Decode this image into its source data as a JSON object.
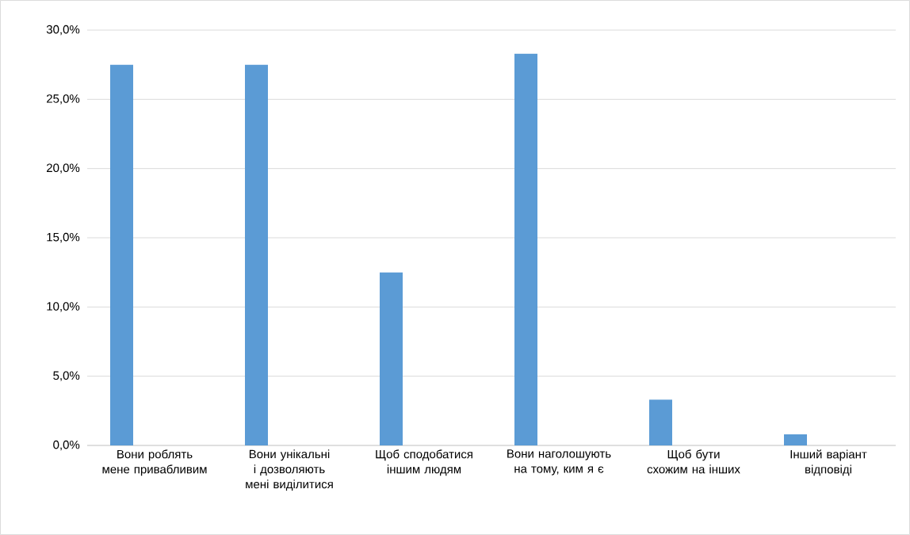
{
  "chart_data": {
    "type": "bar",
    "categories": [
      "Вони роблять мене привабливим",
      "Вони унікальні і дозволяють мені виділитися",
      "Щоб сподобатися іншим людям",
      "Вони наголошують на тому, ким я є",
      "Щоб бути схожим на інших",
      "Інший варіант відповіді"
    ],
    "values": [
      27.5,
      27.5,
      12.5,
      28.3,
      3.3,
      0.8
    ],
    "color": "#5b9bd5",
    "ylim": [
      0,
      30
    ],
    "yticks": [
      {
        "value": 0,
        "label": "0,0%"
      },
      {
        "value": 5,
        "label": "5,0%"
      },
      {
        "value": 10,
        "label": "10,0%"
      },
      {
        "value": 15,
        "label": "15,0%"
      },
      {
        "value": 20,
        "label": "20,0%"
      },
      {
        "value": 25,
        "label": "25,0%"
      },
      {
        "value": 30,
        "label": "30,0%"
      }
    ],
    "grid": "y"
  }
}
